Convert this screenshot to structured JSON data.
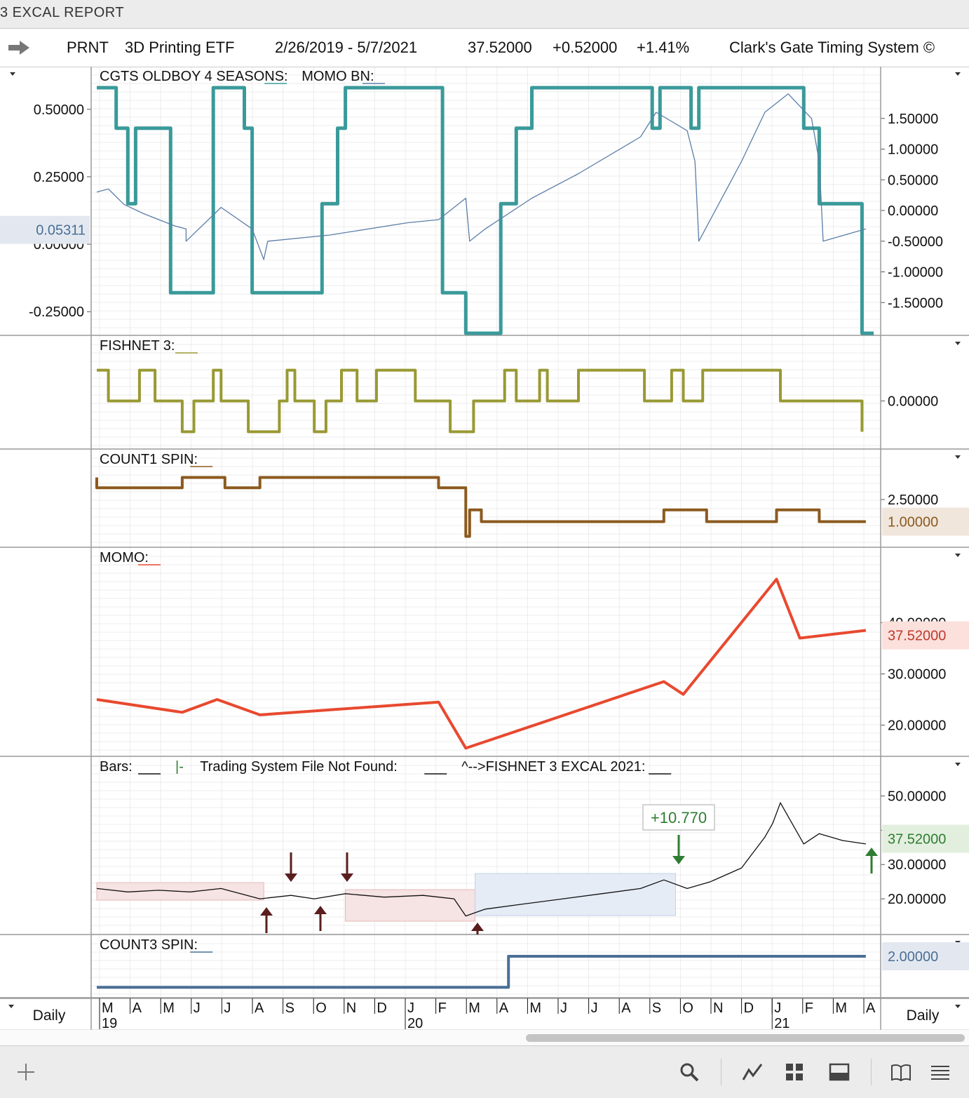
{
  "window": {
    "title": "3 EXCAL REPORT"
  },
  "header": {
    "symbol": "PRNT",
    "name": "3D Printing ETF",
    "date_range": "2/26/2019 - 5/7/2021",
    "last": "37.52000",
    "change": "+0.52000",
    "change_pct": "+1.41%",
    "system": "Clark's Gate Timing System ©"
  },
  "footer": {
    "left_period": "Daily",
    "right_period": "Daily"
  },
  "chart_data": [
    {
      "type": "line",
      "panel": "cgts",
      "labels": [
        {
          "text": "CGTS OLDBOY 4 SEASONS:",
          "color": "#3a9a9a"
        },
        {
          "text": "MOMO BN:",
          "color": "#5b7ea8"
        }
      ],
      "left_axis": {
        "ticks": [
          "0.50000",
          "0.25000",
          "0.00000",
          "-0.25000"
        ],
        "ylim": [
          -0.33,
          0.58
        ]
      },
      "right_axis": {
        "ticks": [
          "1.50000",
          "1.00000",
          "0.50000",
          "0.00000",
          "-0.50000",
          "-1.00000",
          "-1.50000"
        ],
        "ylim": [
          -2.0,
          2.0
        ]
      },
      "badge": {
        "text": "0.05311",
        "value": 0.05311,
        "axis": "left",
        "color": "#4a6f96",
        "bg": "#e3e8f0"
      },
      "series": [
        {
          "color": "#3a9a9a",
          "width": 5,
          "step": true,
          "axis": "left",
          "points": [
            [
              0,
              0.58
            ],
            [
              0.025,
              0.58
            ],
            [
              0.025,
              0.43
            ],
            [
              0.04,
              0.43
            ],
            [
              0.04,
              0.15
            ],
            [
              0.05,
              0.15
            ],
            [
              0.05,
              0.43
            ],
            [
              0.095,
              0.43
            ],
            [
              0.095,
              -0.18
            ],
            [
              0.15,
              -0.18
            ],
            [
              0.15,
              0.58
            ],
            [
              0.19,
              0.58
            ],
            [
              0.19,
              0.43
            ],
            [
              0.2,
              0.43
            ],
            [
              0.2,
              -0.18
            ],
            [
              0.29,
              -0.18
            ],
            [
              0.29,
              0.15
            ],
            [
              0.31,
              0.15
            ],
            [
              0.31,
              0.43
            ],
            [
              0.32,
              0.43
            ],
            [
              0.32,
              0.58
            ],
            [
              0.445,
              0.58
            ],
            [
              0.445,
              -0.18
            ],
            [
              0.475,
              -0.18
            ],
            [
              0.475,
              -0.33
            ],
            [
              0.52,
              -0.33
            ],
            [
              0.52,
              0.15
            ],
            [
              0.54,
              0.15
            ],
            [
              0.54,
              0.43
            ],
            [
              0.56,
              0.43
            ],
            [
              0.56,
              0.58
            ],
            [
              0.715,
              0.58
            ],
            [
              0.715,
              0.43
            ],
            [
              0.725,
              0.43
            ],
            [
              0.725,
              0.58
            ],
            [
              0.765,
              0.58
            ],
            [
              0.765,
              0.43
            ],
            [
              0.775,
              0.43
            ],
            [
              0.775,
              0.58
            ],
            [
              0.91,
              0.58
            ],
            [
              0.91,
              0.43
            ],
            [
              0.93,
              0.43
            ],
            [
              0.93,
              0.15
            ],
            [
              0.985,
              0.15
            ],
            [
              0.985,
              -0.33
            ],
            [
              1,
              -0.33
            ]
          ]
        },
        {
          "color": "#5b7ea8",
          "width": 1.3,
          "axis": "right",
          "points": [
            [
              0,
              0.3
            ],
            [
              0.015,
              0.35
            ],
            [
              0.035,
              0.1
            ],
            [
              0.06,
              -0.05
            ],
            [
              0.1,
              -0.25
            ],
            [
              0.115,
              -0.3
            ],
            [
              0.115,
              -0.5
            ],
            [
              0.16,
              0.05
            ],
            [
              0.2,
              -0.3
            ],
            [
              0.215,
              -0.8
            ],
            [
              0.22,
              -0.5
            ],
            [
              0.3,
              -0.4
            ],
            [
              0.4,
              -0.2
            ],
            [
              0.44,
              -0.15
            ],
            [
              0.475,
              0.2
            ],
            [
              0.48,
              -0.5
            ],
            [
              0.5,
              -0.3
            ],
            [
              0.56,
              0.2
            ],
            [
              0.62,
              0.6
            ],
            [
              0.7,
              1.2
            ],
            [
              0.72,
              1.6
            ],
            [
              0.76,
              1.3
            ],
            [
              0.77,
              0.8
            ],
            [
              0.775,
              -0.5
            ],
            [
              0.83,
              0.8
            ],
            [
              0.86,
              1.6
            ],
            [
              0.89,
              1.9
            ],
            [
              0.92,
              1.5
            ],
            [
              0.93,
              0.8
            ],
            [
              0.935,
              -0.5
            ],
            [
              0.99,
              -0.3
            ]
          ]
        }
      ]
    },
    {
      "type": "line",
      "panel": "fishnet",
      "labels": [
        {
          "text": "FISHNET 3:",
          "color": "#999933"
        }
      ],
      "right_axis": {
        "ticks": [
          "0.00000"
        ],
        "ylim": [
          -1.4,
          1.4
        ]
      },
      "series": [
        {
          "color": "#999933",
          "width": 4,
          "step": true,
          "points": [
            [
              0,
              1
            ],
            [
              0.015,
              1
            ],
            [
              0.015,
              0
            ],
            [
              0.055,
              0
            ],
            [
              0.055,
              1
            ],
            [
              0.075,
              1
            ],
            [
              0.075,
              0
            ],
            [
              0.11,
              0
            ],
            [
              0.11,
              -1
            ],
            [
              0.125,
              -1
            ],
            [
              0.125,
              0
            ],
            [
              0.15,
              0
            ],
            [
              0.15,
              1
            ],
            [
              0.16,
              1
            ],
            [
              0.16,
              0
            ],
            [
              0.195,
              0
            ],
            [
              0.195,
              -1
            ],
            [
              0.235,
              -1
            ],
            [
              0.235,
              0
            ],
            [
              0.245,
              0
            ],
            [
              0.245,
              1
            ],
            [
              0.255,
              1
            ],
            [
              0.255,
              0
            ],
            [
              0.28,
              0
            ],
            [
              0.28,
              -1
            ],
            [
              0.295,
              -1
            ],
            [
              0.295,
              0
            ],
            [
              0.315,
              0
            ],
            [
              0.315,
              1
            ],
            [
              0.335,
              1
            ],
            [
              0.335,
              0
            ],
            [
              0.36,
              0
            ],
            [
              0.36,
              1
            ],
            [
              0.41,
              1
            ],
            [
              0.41,
              0
            ],
            [
              0.455,
              0
            ],
            [
              0.455,
              -1
            ],
            [
              0.485,
              -1
            ],
            [
              0.485,
              0
            ],
            [
              0.525,
              0
            ],
            [
              0.525,
              1
            ],
            [
              0.54,
              1
            ],
            [
              0.54,
              0
            ],
            [
              0.57,
              0
            ],
            [
              0.57,
              1
            ],
            [
              0.58,
              1
            ],
            [
              0.58,
              0
            ],
            [
              0.62,
              0
            ],
            [
              0.62,
              1
            ],
            [
              0.705,
              1
            ],
            [
              0.705,
              0
            ],
            [
              0.74,
              0
            ],
            [
              0.74,
              1
            ],
            [
              0.755,
              1
            ],
            [
              0.755,
              0
            ],
            [
              0.78,
              0
            ],
            [
              0.78,
              1
            ],
            [
              0.88,
              1
            ],
            [
              0.88,
              0
            ],
            [
              0.98,
              0
            ],
            [
              0.98,
              0
            ],
            [
              0.985,
              0
            ],
            [
              0.985,
              -1
            ]
          ]
        }
      ]
    },
    {
      "type": "line",
      "panel": "count1",
      "labels": [
        {
          "text": "COUNT1 SPIN:",
          "color": "#8b5a1e"
        }
      ],
      "right_axis": {
        "ticks": [
          "2.50000"
        ],
        "ylim": [
          -0.5,
          4.5
        ]
      },
      "badge": {
        "text": "1.00000",
        "value": 1.0,
        "axis": "right",
        "color": "#8b5a1e",
        "bg": "#f0e6dc"
      },
      "series": [
        {
          "color": "#8b5a1e",
          "width": 4,
          "step": true,
          "points": [
            [
              0,
              4
            ],
            [
              0,
              3.3
            ],
            [
              0.11,
              3.3
            ],
            [
              0.11,
              4
            ],
            [
              0.165,
              4
            ],
            [
              0.165,
              3.3
            ],
            [
              0.21,
              3.3
            ],
            [
              0.21,
              4
            ],
            [
              0.44,
              4
            ],
            [
              0.44,
              3.3
            ],
            [
              0.475,
              3.3
            ],
            [
              0.475,
              0
            ],
            [
              0.48,
              0
            ],
            [
              0.48,
              1.8
            ],
            [
              0.495,
              1.8
            ],
            [
              0.495,
              1
            ],
            [
              0.73,
              1
            ],
            [
              0.73,
              1.8
            ],
            [
              0.785,
              1.8
            ],
            [
              0.785,
              1
            ],
            [
              0.875,
              1
            ],
            [
              0.875,
              1.8
            ],
            [
              0.93,
              1.8
            ],
            [
              0.93,
              1
            ],
            [
              0.99,
              1
            ]
          ]
        }
      ]
    },
    {
      "type": "line",
      "panel": "momo",
      "labels": [
        {
          "text": "MOMO:",
          "color": "#e8492f"
        }
      ],
      "right_axis": {
        "ticks": [
          "40.00000",
          "30.00000",
          "20.00000"
        ],
        "ylim": [
          15,
          52
        ]
      },
      "badge": {
        "text": "37.52000",
        "value": 37.52,
        "axis": "right",
        "color": "#c0392b",
        "bg": "#fbe0dc"
      },
      "series": [
        {
          "color": "#e8492f",
          "width": 4,
          "points": [
            [
              0,
              25
            ],
            [
              0.11,
              22.5
            ],
            [
              0.155,
              25
            ],
            [
              0.21,
              22
            ],
            [
              0.44,
              24.5
            ],
            [
              0.475,
              15.5
            ],
            [
              0.73,
              28.5
            ],
            [
              0.755,
              26
            ],
            [
              0.875,
              48.5
            ],
            [
              0.905,
              37
            ],
            [
              0.99,
              38.5
            ]
          ]
        }
      ]
    },
    {
      "type": "line",
      "panel": "bars",
      "labels": [
        {
          "text": "Bars:",
          "color": "#111"
        },
        {
          "text": "|-",
          "color": "#2e7d32"
        },
        {
          "text": "Trading System File Not Found:",
          "color": "#111"
        },
        {
          "text": "^-->FISHNET 3 EXCAL 2021:",
          "color": "#111"
        }
      ],
      "right_axis": {
        "ticks": [
          "50.00000",
          "40.00000",
          "30.00000",
          "20.00000"
        ],
        "ylim": [
          10,
          55
        ]
      },
      "badge": {
        "text": "37.52000",
        "value": 37.52,
        "axis": "right",
        "color": "#2e7d32",
        "bg": "#e3efde"
      },
      "annotation": {
        "text": "+10.770",
        "color": "#2e7d32"
      },
      "series": [
        {
          "color": "#111",
          "width": 1.3,
          "points": [
            [
              0,
              23
            ],
            [
              0.04,
              22
            ],
            [
              0.08,
              22.5
            ],
            [
              0.12,
              22
            ],
            [
              0.16,
              23
            ],
            [
              0.21,
              20
            ],
            [
              0.25,
              21
            ],
            [
              0.28,
              20
            ],
            [
              0.32,
              21.5
            ],
            [
              0.37,
              20.5
            ],
            [
              0.42,
              21
            ],
            [
              0.46,
              20
            ],
            [
              0.475,
              15
            ],
            [
              0.5,
              17
            ],
            [
              0.55,
              18.5
            ],
            [
              0.6,
              20
            ],
            [
              0.65,
              21.5
            ],
            [
              0.7,
              23
            ],
            [
              0.73,
              25.5
            ],
            [
              0.76,
              23
            ],
            [
              0.79,
              25
            ],
            [
              0.83,
              29
            ],
            [
              0.84,
              32
            ],
            [
              0.86,
              38
            ],
            [
              0.87,
              42
            ],
            [
              0.88,
              48
            ],
            [
              0.89,
              44
            ],
            [
              0.9,
              40
            ],
            [
              0.91,
              36
            ],
            [
              0.93,
              39
            ],
            [
              0.96,
              37
            ],
            [
              0.99,
              36
            ]
          ]
        }
      ]
    },
    {
      "type": "line",
      "panel": "count3",
      "labels": [
        {
          "text": "COUNT3 SPIN:",
          "color": "#4a6f96"
        }
      ],
      "right_axis": {
        "ticks": [],
        "ylim": [
          0,
          2.5
        ]
      },
      "badge": {
        "text": "2.00000",
        "value": 2.0,
        "axis": "right",
        "color": "#4a6f96",
        "bg": "#e3e8f0"
      },
      "series": [
        {
          "color": "#4a6f96",
          "width": 4,
          "step": true,
          "points": [
            [
              0,
              0.3
            ],
            [
              0.53,
              0.3
            ],
            [
              0.53,
              2
            ],
            [
              0.99,
              2
            ]
          ]
        }
      ]
    }
  ],
  "x_axis": {
    "months": [
      "M",
      "A",
      "M",
      "J",
      "J",
      "A",
      "S",
      "O",
      "N",
      "D",
      "J",
      "F",
      "M",
      "A",
      "M",
      "J",
      "J",
      "A",
      "S",
      "O",
      "N",
      "D",
      "J",
      "F",
      "M",
      "A"
    ],
    "years": [
      {
        "label": "19",
        "index": 0
      },
      {
        "label": "20",
        "index": 10
      },
      {
        "label": "21",
        "index": 22
      }
    ]
  },
  "colors": {
    "teal": "#3a9a9a",
    "olive": "#999933",
    "brown": "#8b5a1e",
    "red": "#e8492f",
    "steel": "#4a6f96",
    "green": "#2e7d32",
    "maroon": "#5a1e1e"
  }
}
